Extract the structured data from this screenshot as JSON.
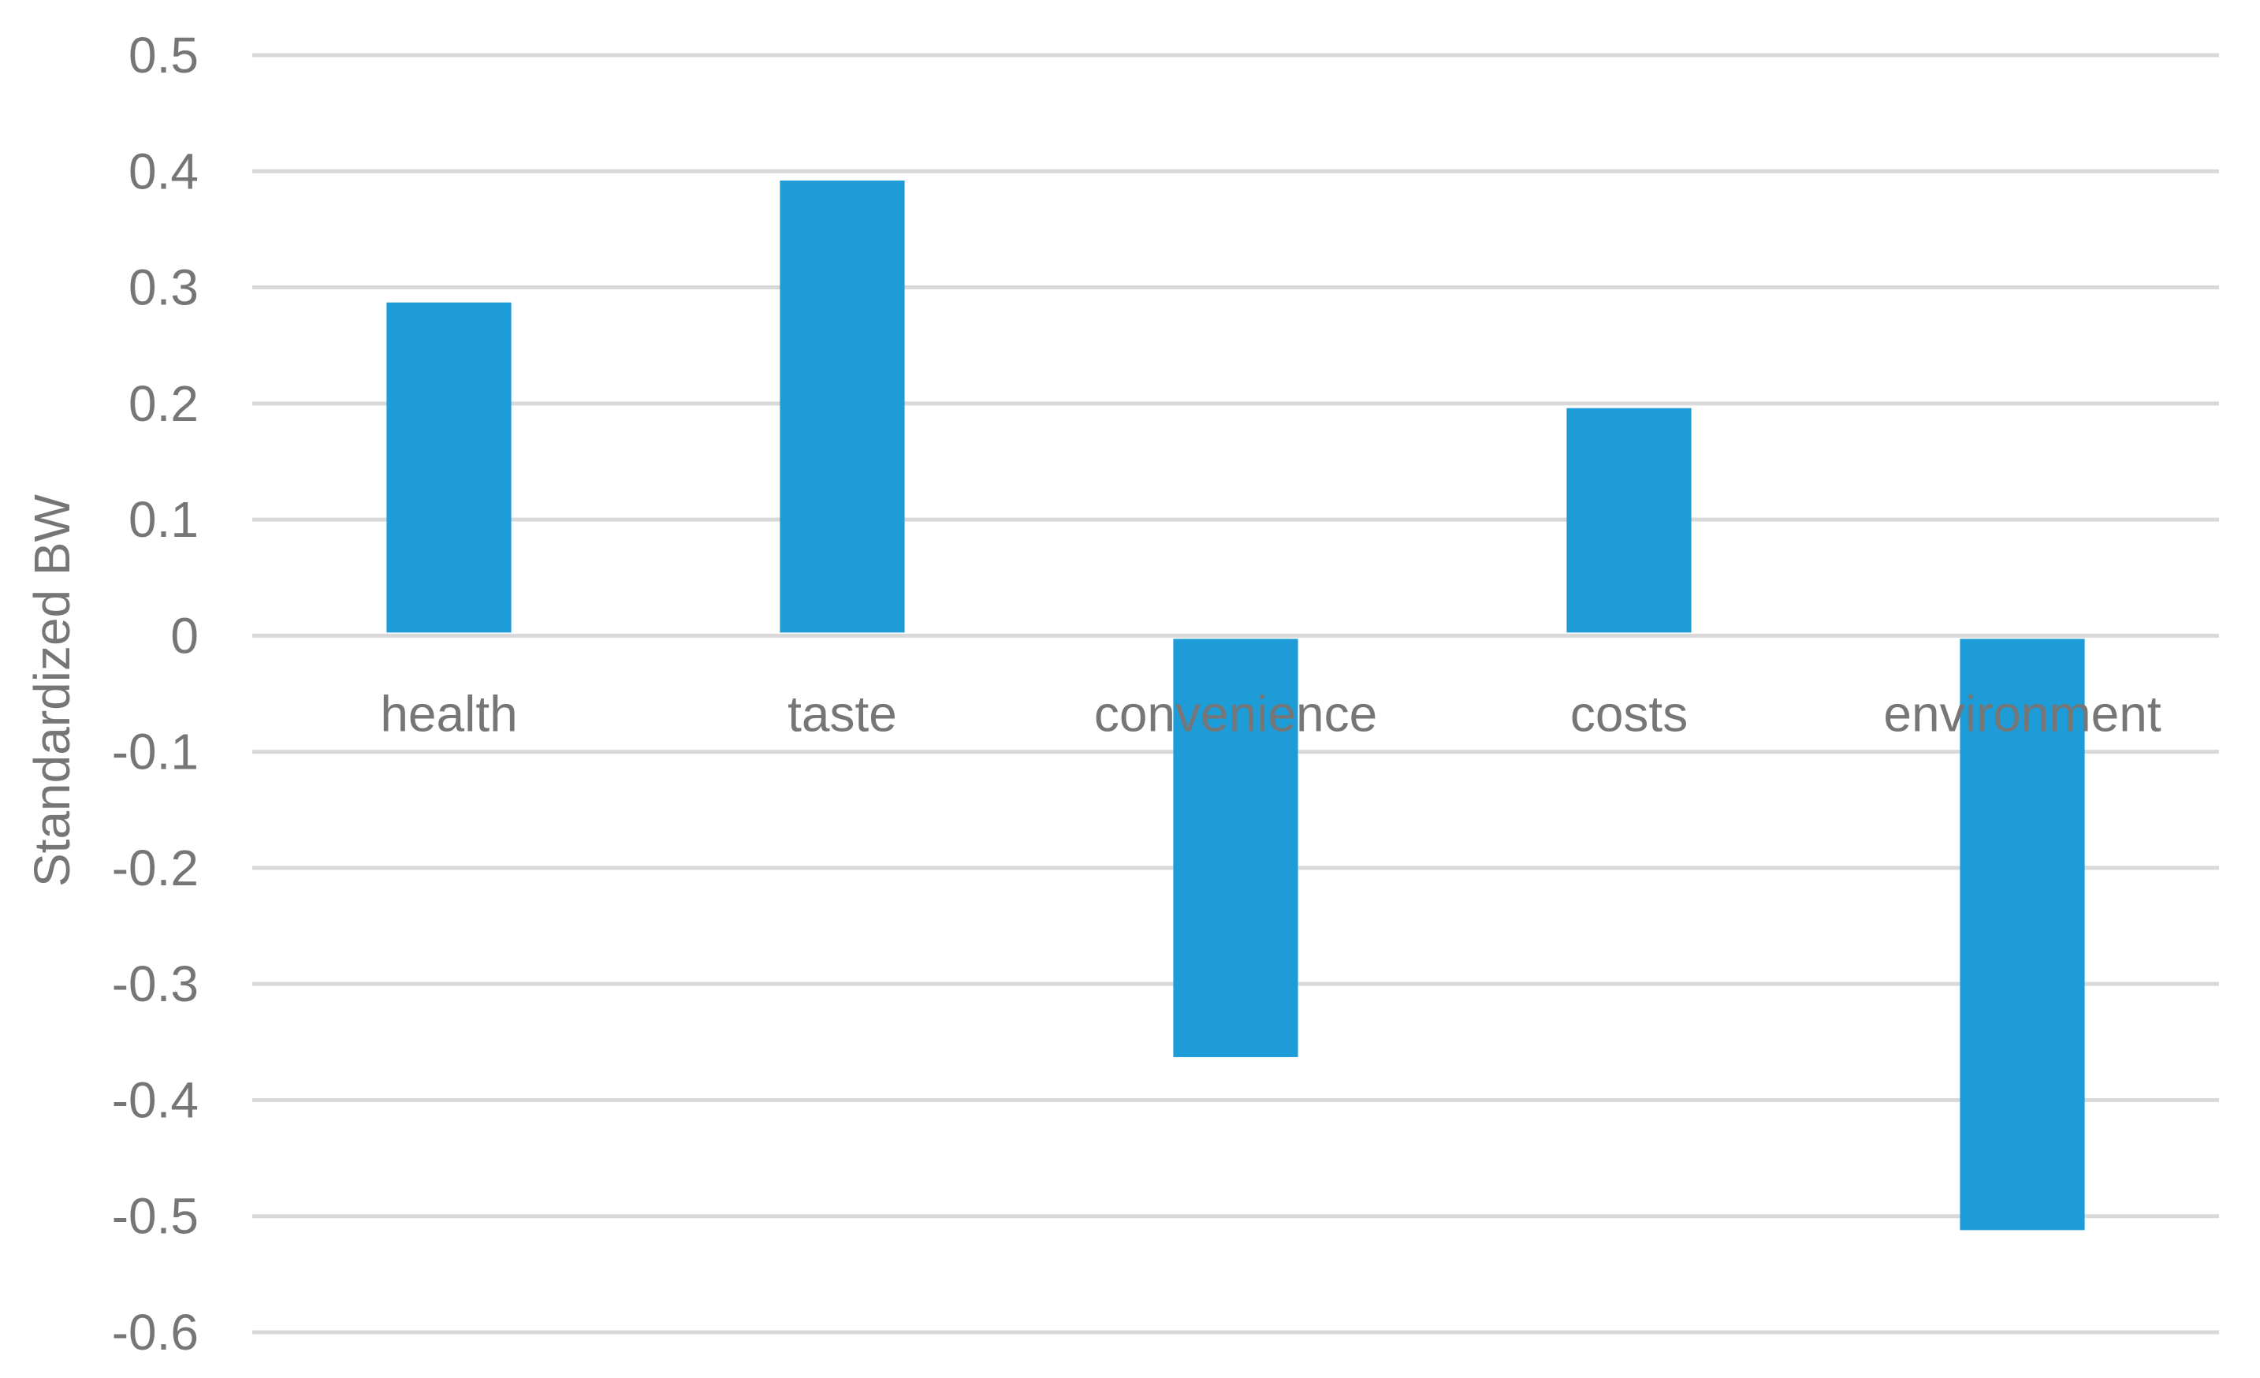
{
  "chart_data": {
    "type": "bar",
    "categories": [
      "health",
      "taste",
      "convenience",
      "costs",
      "environment"
    ],
    "values": [
      0.287,
      0.392,
      -0.363,
      0.196,
      -0.512
    ],
    "ylabel": "Standardized BW",
    "xlabel": "",
    "ylim": [
      -0.6,
      0.5
    ],
    "yticks": [
      0.5,
      0.4,
      0.3,
      0.2,
      0.1,
      0,
      -0.1,
      -0.2,
      -0.3,
      -0.4,
      -0.5,
      -0.6
    ],
    "ytick_labels": [
      "0.5",
      "0.4",
      "0.3",
      "0.2",
      "0.1",
      "0",
      "-0.1",
      "-0.2",
      "-0.3",
      "-0.4",
      "-0.5",
      "-0.6"
    ],
    "grid": true,
    "legend": "none",
    "bar_color": "#1e9cd7",
    "grid_color": "#d9d9d9",
    "text_color": "#767676"
  }
}
